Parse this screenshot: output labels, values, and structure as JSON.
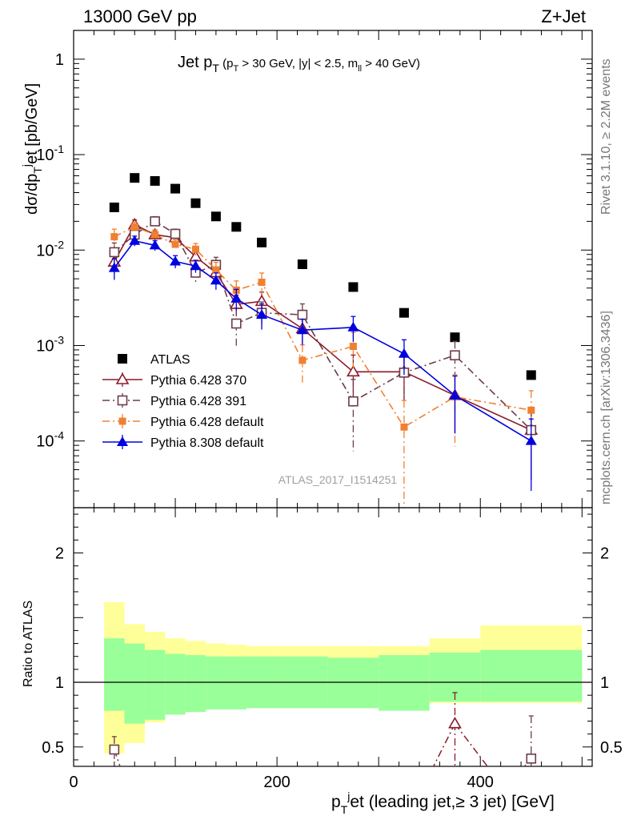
{
  "header": {
    "left": "13000 GeV pp",
    "right": "Z+Jet"
  },
  "side_labels": {
    "rivet": "Rivet 3.1.10, ≥ 2.2M events",
    "mcplots": "mcplots.cern.ch [arXiv:1306.3436]"
  },
  "chart_data": {
    "type": "scatter",
    "title": "Jet p_T (p_T > 30 GeV, |y| < 2.5, m_ll > 40 GeV)",
    "watermark": "ATLAS_2017_I1514251",
    "xlabel": "p_T^j et (leading jet,≥ 3 jet) [GeV]",
    "ylabel": "dσ/dp_T^j et [pb/GeV]",
    "ratio_ylabel": "Ratio to ATLAS",
    "xlim": [
      0,
      510
    ],
    "ylim": [
      2e-05,
      2
    ],
    "yscale": "log",
    "ratio_ylim": [
      0.35,
      2.35
    ],
    "x_ticks": [
      0,
      200,
      400
    ],
    "y_ticks": [
      "10^-4",
      "10^-3",
      "10^-2",
      "10^-1",
      "1"
    ],
    "ratio_ticks": [
      0.5,
      1,
      2
    ],
    "x": [
      40,
      60,
      80,
      100,
      120,
      140,
      160,
      185,
      225,
      275,
      325,
      375,
      450
    ],
    "x_low": [
      30,
      50,
      70,
      90,
      110,
      130,
      150,
      170,
      200,
      250,
      300,
      350,
      400
    ],
    "x_high": [
      50,
      70,
      90,
      110,
      130,
      150,
      170,
      200,
      250,
      300,
      350,
      400,
      500
    ],
    "series": [
      {
        "name": "ATLAS",
        "color": "#000000",
        "marker": "square-filled",
        "values": [
          0.028,
          0.057,
          0.053,
          0.044,
          0.031,
          0.0225,
          0.0175,
          0.012,
          0.0071,
          0.0041,
          0.0022,
          0.00122,
          0.00049
        ]
      },
      {
        "name": "Pythia 6.428 370",
        "color": "#8b1a2b",
        "marker": "triangle-open",
        "line": "solid",
        "values": [
          0.0075,
          0.0185,
          0.0145,
          0.0135,
          0.0085,
          0.0058,
          0.0027,
          0.0029,
          0.0015,
          0.00053,
          0.00053,
          0.0003,
          0.00013
        ],
        "err": [
          0.25,
          0.12,
          0.12,
          0.12,
          0.15,
          0.18,
          0.25,
          0.25,
          0.3,
          0.5,
          0.5,
          0.6,
          0.7
        ]
      },
      {
        "name": "Pythia 6.428 391",
        "color": "#6b3d4a",
        "marker": "square-open",
        "line": "dashdot",
        "values": [
          0.0095,
          0.0145,
          0.02,
          0.0148,
          0.0058,
          0.007,
          0.0017,
          0.0022,
          0.0021,
          0.00026,
          0.00052,
          0.00079,
          0.00013
        ],
        "err": [
          0.25,
          0.12,
          0.12,
          0.12,
          0.2,
          0.2,
          0.45,
          0.3,
          0.3,
          0.7,
          0.5,
          0.4,
          0.7
        ]
      },
      {
        "name": "Pythia 6.428 default",
        "color": "#f08030",
        "marker": "square-filled-small",
        "line": "dashdot",
        "values": [
          0.0138,
          0.0175,
          0.0145,
          0.0115,
          0.0102,
          0.0062,
          0.0038,
          0.0046,
          0.0007,
          0.00098,
          0.00014,
          0.00029,
          0.00021
        ],
        "err": [
          0.2,
          0.12,
          0.12,
          0.12,
          0.15,
          0.2,
          0.25,
          0.25,
          0.45,
          0.4,
          0.9,
          0.7,
          0.6
        ]
      },
      {
        "name": "Pythia 8.308 default",
        "color": "#0000e0",
        "marker": "triangle-filled",
        "line": "solid",
        "values": [
          0.0065,
          0.0125,
          0.0112,
          0.0076,
          0.0068,
          0.0048,
          0.0031,
          0.0021,
          0.00145,
          0.00155,
          0.00082,
          0.0003,
          0.0001
        ],
        "err": [
          0.25,
          0.12,
          0.12,
          0.15,
          0.15,
          0.2,
          0.25,
          0.3,
          0.3,
          0.3,
          0.4,
          0.6,
          0.7
        ]
      }
    ],
    "ratio": {
      "band_green": [
        [
          0.78,
          1.34
        ],
        [
          0.68,
          1.3
        ],
        [
          0.71,
          1.25
        ],
        [
          0.75,
          1.22
        ],
        [
          0.77,
          1.21
        ],
        [
          0.79,
          1.2
        ],
        [
          0.79,
          1.2
        ],
        [
          0.8,
          1.2
        ],
        [
          0.8,
          1.2
        ],
        [
          0.8,
          1.19
        ],
        [
          0.78,
          1.21
        ],
        [
          0.85,
          1.23
        ],
        [
          0.85,
          1.25
        ]
      ],
      "band_yellow": [
        [
          0.45,
          1.62
        ],
        [
          0.53,
          1.45
        ],
        [
          0.69,
          1.39
        ],
        [
          0.75,
          1.34
        ],
        [
          0.79,
          1.32
        ],
        [
          0.83,
          1.3
        ],
        [
          0.84,
          1.29
        ],
        [
          0.84,
          1.28
        ],
        [
          0.84,
          1.28
        ],
        [
          0.84,
          1.28
        ],
        [
          0.84,
          1.28
        ],
        [
          0.84,
          1.34
        ],
        [
          0.84,
          1.44
        ]
      ],
      "visible_points": [
        {
          "series": 2,
          "x": 375,
          "y": 0.68,
          "err": 0.24
        },
        {
          "series": 3,
          "x": 40,
          "y": 0.48,
          "err": 0.1
        },
        {
          "series": 3,
          "x": 450,
          "y": 0.41,
          "err": 0.33
        }
      ]
    }
  }
}
